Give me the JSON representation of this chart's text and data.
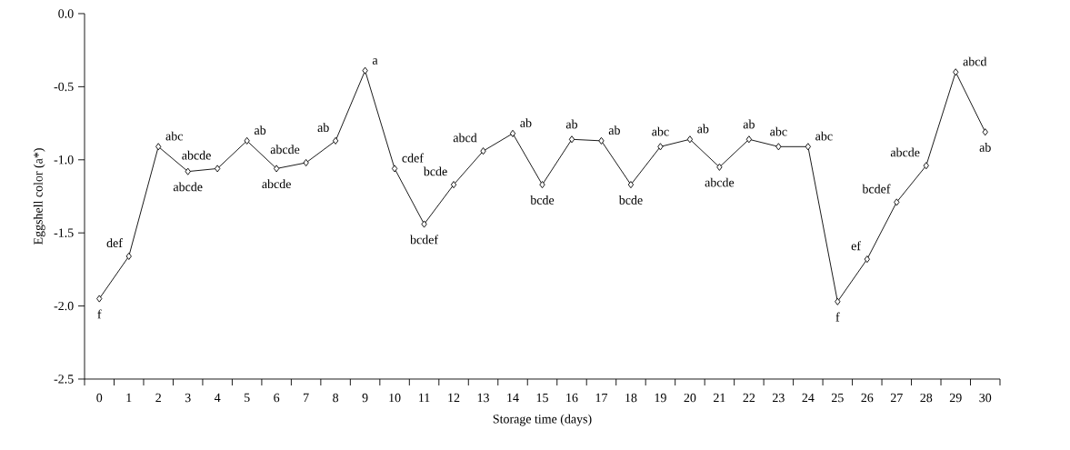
{
  "chart_data": {
    "type": "line",
    "xlabel": "Storage time (days)",
    "ylabel": "Eggshell color (a*)",
    "categories": [
      "0",
      "1",
      "2",
      "3",
      "4",
      "5",
      "6",
      "7",
      "8",
      "9",
      "10",
      "11",
      "12",
      "13",
      "14",
      "15",
      "16",
      "17",
      "18",
      "19",
      "20",
      "21",
      "22",
      "23",
      "24",
      "25",
      "26",
      "27",
      "28",
      "29",
      "30"
    ],
    "series": [
      {
        "color": "#000000",
        "values": [
          -1.95,
          -1.66,
          -0.91,
          -1.08,
          -1.06,
          -0.87,
          -1.06,
          -1.02,
          -0.87,
          -0.39,
          -1.06,
          -1.44,
          -1.17,
          -0.94,
          -0.82,
          -1.17,
          -0.86,
          -0.87,
          -1.17,
          -0.91,
          -0.86,
          -1.05,
          -0.86,
          -0.91,
          -0.91,
          -1.97,
          -1.68,
          -1.29,
          -1.04,
          -0.4,
          -0.81
        ]
      }
    ],
    "ylim": [
      -2.5,
      0
    ],
    "yticks": [
      {
        "value": -2.5,
        "label": "-2.5"
      },
      {
        "value": -2,
        "label": "-2.0"
      },
      {
        "value": -1.5,
        "label": "-1.5"
      },
      {
        "value": -1,
        "label": "-1.0"
      },
      {
        "value": -0.5,
        "label": "-0.5"
      },
      {
        "value": 0,
        "label": "0.0"
      }
    ],
    "marker": "diamond",
    "line_style": "solid",
    "grid": false,
    "annotations": [
      {
        "text": "f",
        "x": "0",
        "y": -1.95
      },
      {
        "text": "def",
        "x": "1",
        "y": -1.66
      },
      {
        "text": "abc",
        "x": "2",
        "y": -0.91
      },
      {
        "text": "abcde",
        "x": "3",
        "y": -1.08
      },
      {
        "text": "abcde",
        "x": "4",
        "y": -1.06
      },
      {
        "text": "ab",
        "x": "5",
        "y": -0.87
      },
      {
        "text": "abcde",
        "x": "6",
        "y": -1.06
      },
      {
        "text": "abcde",
        "x": "7",
        "y": -1.02
      },
      {
        "text": "ab",
        "x": "8",
        "y": -0.87
      },
      {
        "text": "a",
        "x": "9",
        "y": -0.39
      },
      {
        "text": "cdef",
        "x": "10",
        "y": -1.06
      },
      {
        "text": "bcdef",
        "x": "11",
        "y": -1.44
      },
      {
        "text": "bcde",
        "x": "12",
        "y": -1.17
      },
      {
        "text": "abcd",
        "x": "13",
        "y": -0.94
      },
      {
        "text": "ab",
        "x": "14",
        "y": -0.82
      },
      {
        "text": "bcde",
        "x": "15",
        "y": -1.17
      },
      {
        "text": "ab",
        "x": "16",
        "y": -0.86
      },
      {
        "text": "ab",
        "x": "17",
        "y": -0.87
      },
      {
        "text": "bcde",
        "x": "18",
        "y": -1.17
      },
      {
        "text": "abc",
        "x": "19",
        "y": -0.91
      },
      {
        "text": "ab",
        "x": "20",
        "y": -0.86
      },
      {
        "text": "abcde",
        "x": "21",
        "y": -1.05
      },
      {
        "text": "ab",
        "x": "22",
        "y": -0.86
      },
      {
        "text": "abc",
        "x": "23",
        "y": -0.91
      },
      {
        "text": "abc",
        "x": "24",
        "y": -0.91
      },
      {
        "text": "f",
        "x": "25",
        "y": -1.97
      },
      {
        "text": "ef",
        "x": "26",
        "y": -1.68
      },
      {
        "text": "bcdef",
        "x": "27",
        "y": -1.29
      },
      {
        "text": "abcde",
        "x": "28",
        "y": -1.04
      },
      {
        "text": "abcd",
        "x": "29",
        "y": -0.4
      },
      {
        "text": "ab",
        "x": "30",
        "y": -0.81
      }
    ]
  }
}
